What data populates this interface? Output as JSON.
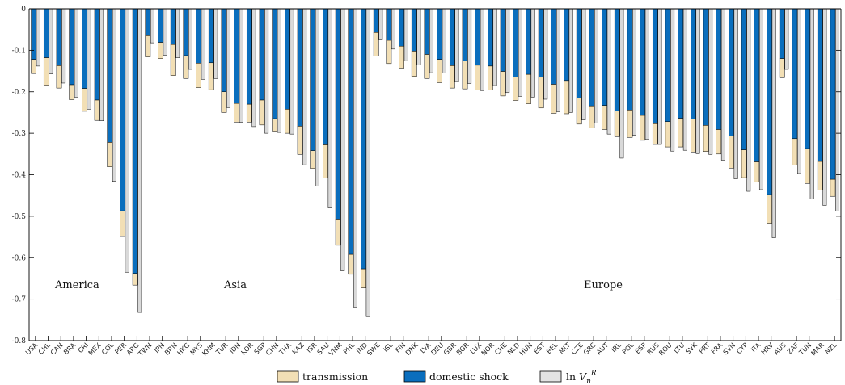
{
  "chart_data": {
    "type": "bar",
    "ylim": [
      -0.8,
      0
    ],
    "yticks": [
      "0",
      "-0.1",
      "-0.2",
      "-0.3",
      "-0.4",
      "-0.5",
      "-0.6",
      "-0.7",
      "-0.8"
    ],
    "grid": false,
    "legend_position": "bottom",
    "categories": [
      "USA",
      "CHL",
      "CAN",
      "BRA",
      "CRI",
      "MEX",
      "COL",
      "PER",
      "ARG",
      "TWN",
      "JPN",
      "BRN",
      "HKG",
      "MYS",
      "KHM",
      "TUR",
      "IDN",
      "KOR",
      "SGP",
      "CHN",
      "THA",
      "KAZ",
      "ISR",
      "SAU",
      "VNM",
      "PHL",
      "IND",
      "SWE",
      "ISL",
      "FIN",
      "DNK",
      "LVA",
      "DEU",
      "GBR",
      "BGR",
      "LUX",
      "NOR",
      "CHE",
      "NLD",
      "HUN",
      "EST",
      "BEL",
      "MLT",
      "CZE",
      "GRC",
      "AUT",
      "IRL",
      "POL",
      "ESP",
      "RUS",
      "ROU",
      "LTU",
      "SVK",
      "PRT",
      "FRA",
      "SVN",
      "CYP",
      "ITA",
      "HRV",
      "AUS",
      "ZAF",
      "TUN",
      "MAR",
      "NZL"
    ],
    "series": [
      {
        "name": "domestic shock",
        "color": "#0a6ebd",
        "values": [
          -0.122,
          -0.118,
          -0.137,
          -0.183,
          -0.192,
          -0.22,
          -0.322,
          -0.487,
          -0.638,
          -0.063,
          -0.081,
          -0.086,
          -0.113,
          -0.131,
          -0.13,
          -0.2,
          -0.228,
          -0.23,
          -0.22,
          -0.265,
          -0.242,
          -0.283,
          -0.342,
          -0.328,
          -0.507,
          -0.592,
          -0.627,
          -0.057,
          -0.076,
          -0.09,
          -0.102,
          -0.11,
          -0.122,
          -0.137,
          -0.126,
          -0.136,
          -0.138,
          -0.151,
          -0.164,
          -0.158,
          -0.165,
          -0.182,
          -0.173,
          -0.215,
          -0.234,
          -0.233,
          -0.246,
          -0.244,
          -0.257,
          -0.277,
          -0.272,
          -0.264,
          -0.266,
          -0.281,
          -0.291,
          -0.307,
          -0.34,
          -0.369,
          -0.448,
          -0.12,
          -0.313,
          -0.337,
          -0.368,
          -0.411
        ]
      },
      {
        "name": "transmission",
        "color": "#f2dfb5",
        "values": [
          -0.034,
          -0.066,
          -0.054,
          -0.036,
          -0.055,
          -0.049,
          -0.059,
          -0.062,
          -0.028,
          -0.053,
          -0.039,
          -0.075,
          -0.055,
          -0.059,
          -0.065,
          -0.05,
          -0.045,
          -0.043,
          -0.06,
          -0.03,
          -0.058,
          -0.068,
          -0.043,
          -0.08,
          -0.063,
          -0.048,
          -0.046,
          -0.057,
          -0.056,
          -0.053,
          -0.061,
          -0.058,
          -0.056,
          -0.054,
          -0.067,
          -0.06,
          -0.058,
          -0.059,
          -0.057,
          -0.071,
          -0.074,
          -0.07,
          -0.08,
          -0.063,
          -0.053,
          -0.058,
          -0.062,
          -0.066,
          -0.06,
          -0.05,
          -0.061,
          -0.069,
          -0.079,
          -0.063,
          -0.059,
          -0.077,
          -0.067,
          -0.048,
          -0.069,
          -0.046,
          -0.064,
          -0.084,
          -0.069,
          -0.041
        ]
      },
      {
        "name": "ln V_n^R",
        "color": "#d9d9d9",
        "values": [
          -0.138,
          -0.157,
          -0.179,
          -0.213,
          -0.242,
          -0.27,
          -0.416,
          -0.635,
          -0.732,
          -0.082,
          -0.112,
          -0.118,
          -0.146,
          -0.17,
          -0.168,
          -0.238,
          -0.274,
          -0.284,
          -0.3,
          -0.298,
          -0.302,
          -0.376,
          -0.427,
          -0.48,
          -0.632,
          -0.719,
          -0.742,
          -0.073,
          -0.097,
          -0.125,
          -0.135,
          -0.154,
          -0.155,
          -0.175,
          -0.18,
          -0.197,
          -0.185,
          -0.202,
          -0.211,
          -0.213,
          -0.218,
          -0.248,
          -0.25,
          -0.268,
          -0.275,
          -0.302,
          -0.36,
          -0.305,
          -0.315,
          -0.327,
          -0.343,
          -0.341,
          -0.349,
          -0.351,
          -0.365,
          -0.41,
          -0.44,
          -0.436,
          -0.552,
          -0.146,
          -0.397,
          -0.458,
          -0.474,
          -0.488
        ]
      }
    ],
    "annotations": [
      "America",
      "Asia",
      "Europe"
    ],
    "legend": [
      "transmission",
      "domestic shock",
      "ln V_n^R"
    ]
  }
}
